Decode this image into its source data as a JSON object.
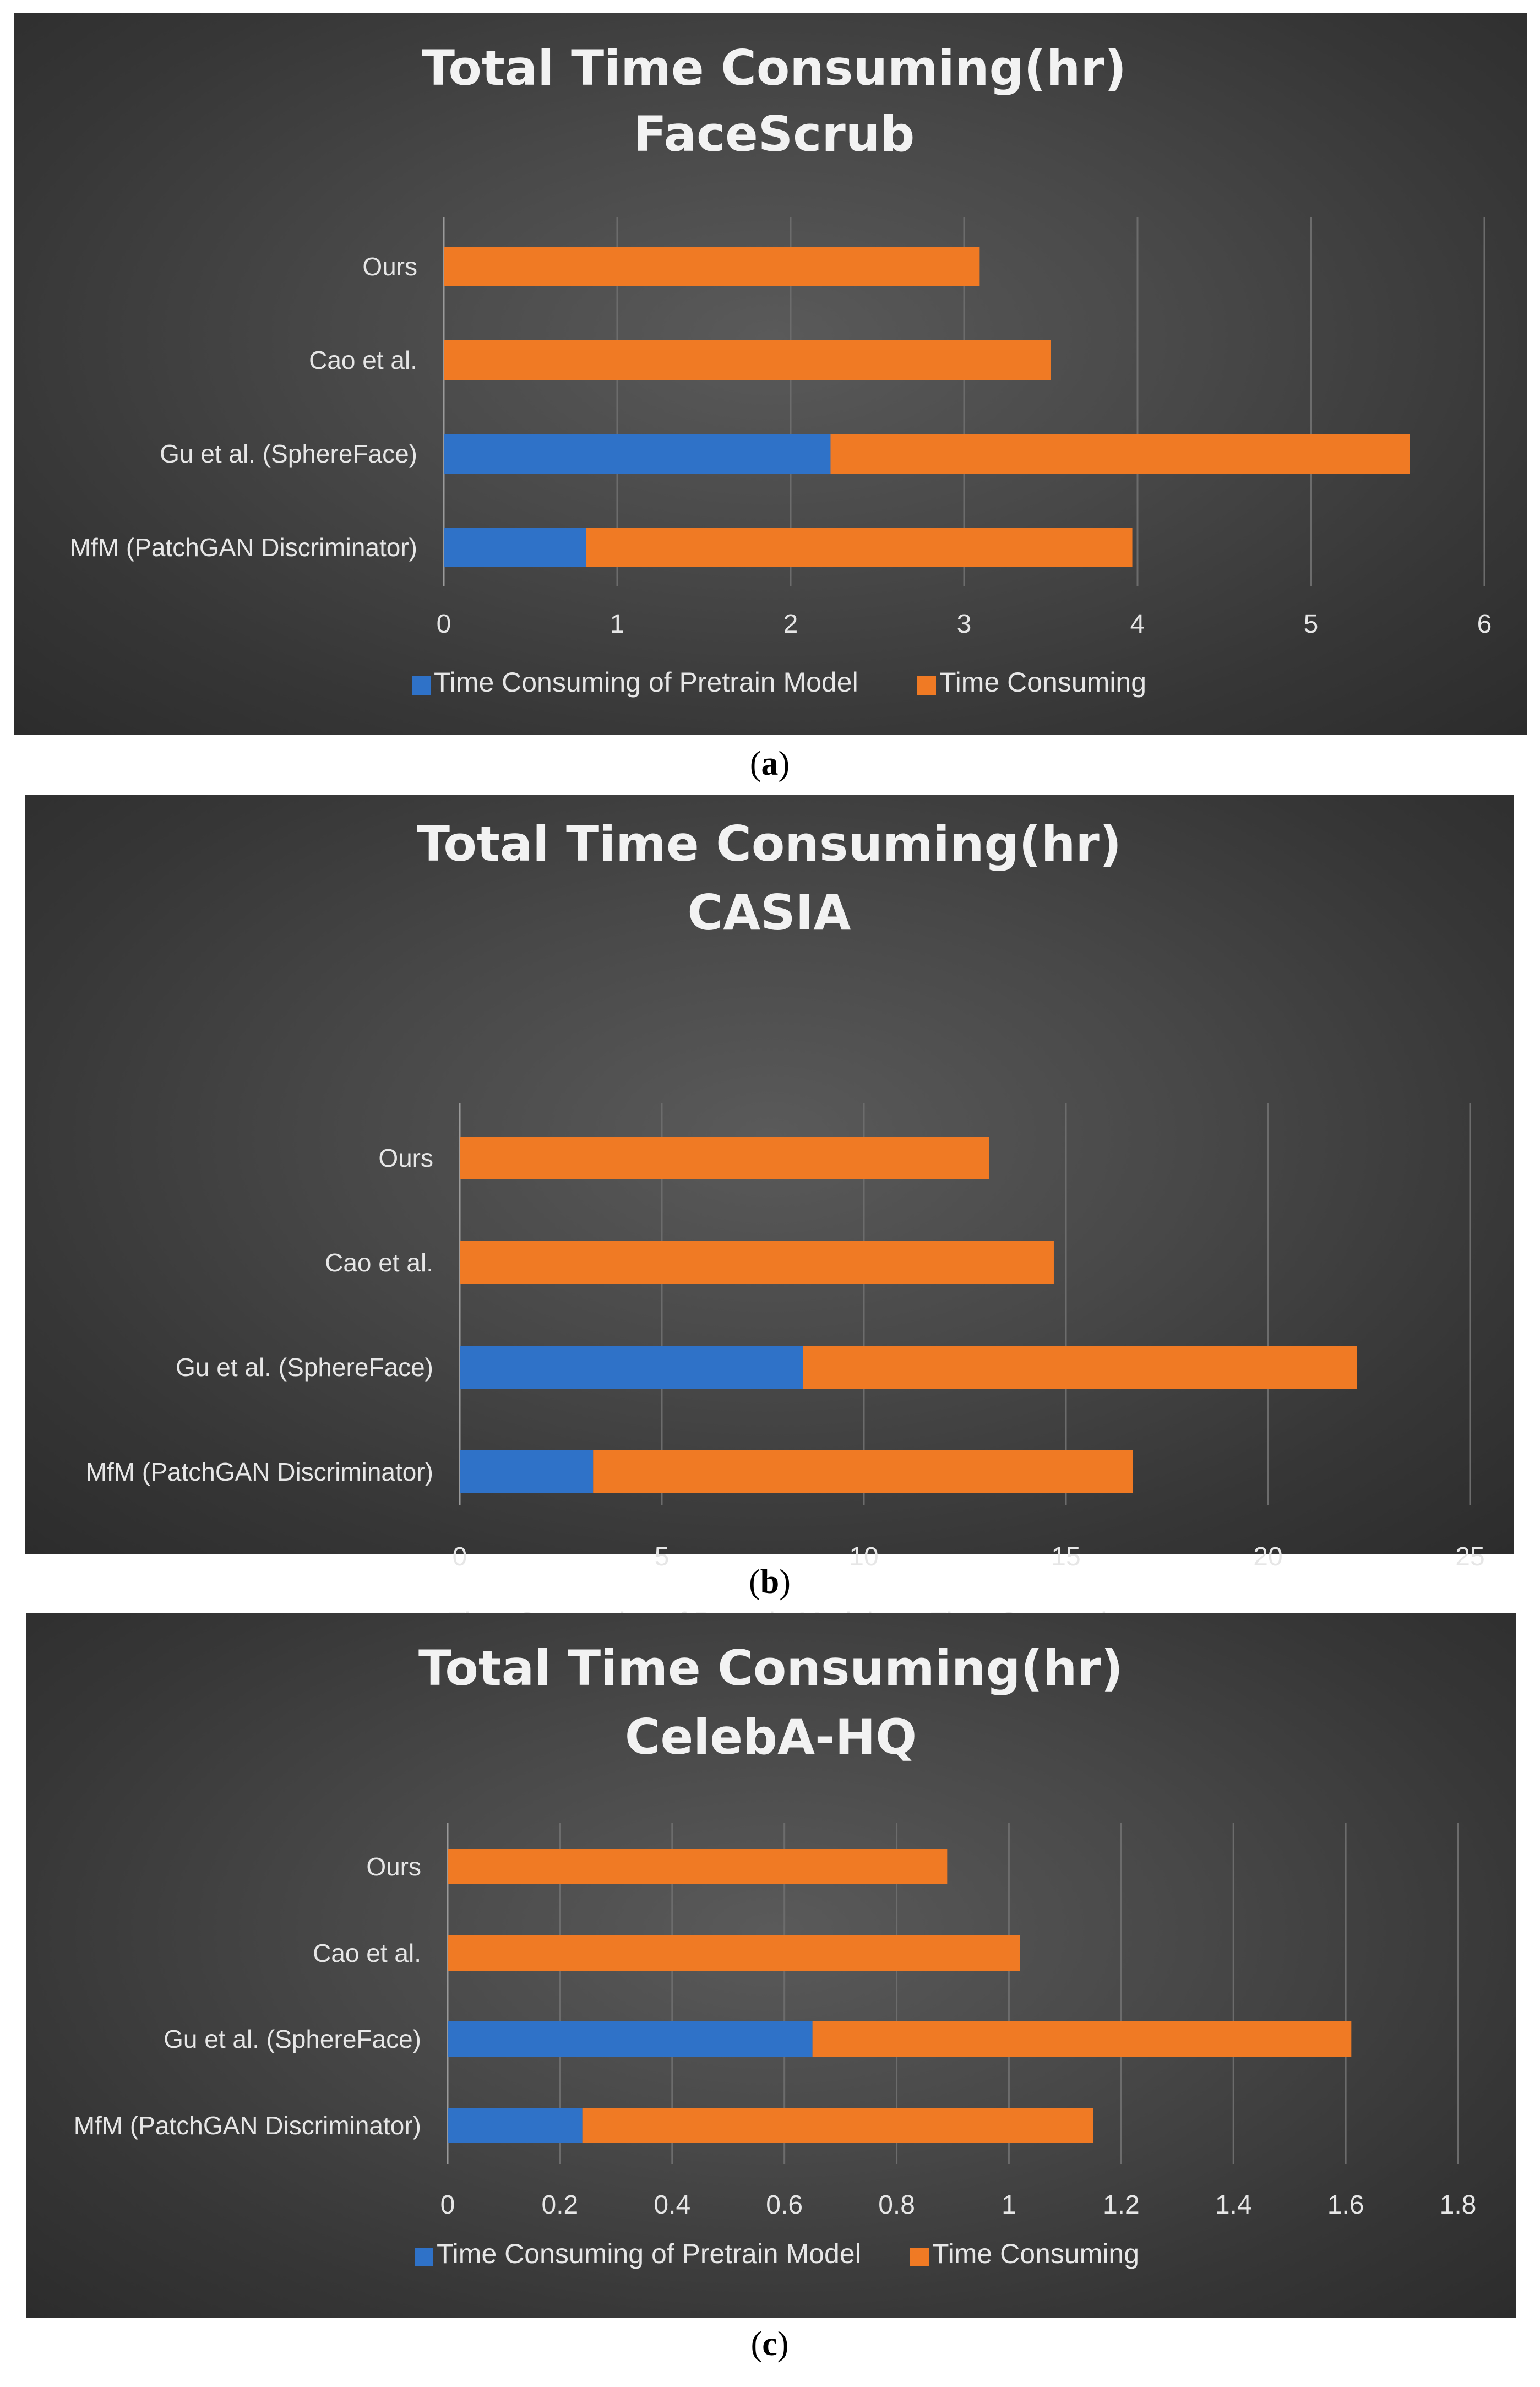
{
  "colors": {
    "pretrain": "#2f72c8",
    "time": "#f07a24",
    "grid": "#6c6c6c",
    "text": "#e6e6e6"
  },
  "legend": {
    "pretrain_label": "Time Consuming of Pretrain Model",
    "time_label": "Time Consuming"
  },
  "captions": [
    {
      "open": "(",
      "letter": "a",
      "close": ")"
    },
    {
      "open": "(",
      "letter": "b",
      "close": ")"
    },
    {
      "open": "(",
      "letter": "c",
      "close": ")"
    }
  ],
  "chart_data": [
    {
      "type": "bar",
      "orientation": "horizontal",
      "stacked": true,
      "title": "Total Time Consuming(hr)",
      "subtitle": "FaceScrub",
      "categories": [
        "Ours",
        "Cao et al.",
        "Gu et al.  (SphereFace)",
        "MfM (PatchGAN Discriminator)"
      ],
      "series": [
        {
          "name": "Time Consuming of Pretrain Model",
          "values": [
            0,
            0,
            2.23,
            0.82
          ]
        },
        {
          "name": "Time Consuming",
          "values": [
            3.09,
            3.5,
            3.34,
            3.15
          ]
        }
      ],
      "xlim": [
        0,
        6
      ],
      "xticks": [
        "0",
        "1",
        "2",
        "3",
        "4",
        "5",
        "6"
      ],
      "tick_values": [
        0,
        1,
        2,
        3,
        4,
        5,
        6
      ],
      "grid": true,
      "legend_position": "bottom"
    },
    {
      "type": "bar",
      "orientation": "horizontal",
      "stacked": true,
      "title": "Total Time Consuming(hr)",
      "subtitle": "CASIA",
      "categories": [
        "Ours",
        "Cao et al.",
        "Gu et al.  (SphereFace)",
        "MfM (PatchGAN Discriminator)"
      ],
      "series": [
        {
          "name": "Time Consuming of Pretrain Model",
          "values": [
            0,
            0,
            8.5,
            3.3
          ]
        },
        {
          "name": "Time Consuming",
          "values": [
            13.1,
            14.7,
            13.7,
            13.35
          ]
        }
      ],
      "xlim": [
        0,
        25
      ],
      "xticks": [
        "0",
        "5",
        "10",
        "15",
        "20",
        "25"
      ],
      "tick_values": [
        0,
        5,
        10,
        15,
        20,
        25
      ],
      "grid": true,
      "legend_position": "bottom"
    },
    {
      "type": "bar",
      "orientation": "horizontal",
      "stacked": true,
      "title": "Total Time Consuming(hr)",
      "subtitle": "CelebA-HQ",
      "categories": [
        "Ours",
        "Cao et al.",
        "Gu et al.  (SphereFace)",
        "MfM (PatchGAN Discriminator)"
      ],
      "series": [
        {
          "name": "Time Consuming of Pretrain Model",
          "values": [
            0,
            0,
            0.65,
            0.24
          ]
        },
        {
          "name": "Time Consuming",
          "values": [
            0.89,
            1.02,
            0.96,
            0.91
          ]
        }
      ],
      "xlim": [
        0,
        1.8
      ],
      "xticks": [
        "0",
        "0.2",
        "0.4",
        "0.6",
        "0.8",
        "1",
        "1.2",
        "1.4",
        "1.6",
        "1.8"
      ],
      "tick_values": [
        0,
        0.2,
        0.4,
        0.6,
        0.8,
        1,
        1.2,
        1.4,
        1.6,
        1.8
      ],
      "grid": true,
      "legend_position": "bottom"
    }
  ]
}
